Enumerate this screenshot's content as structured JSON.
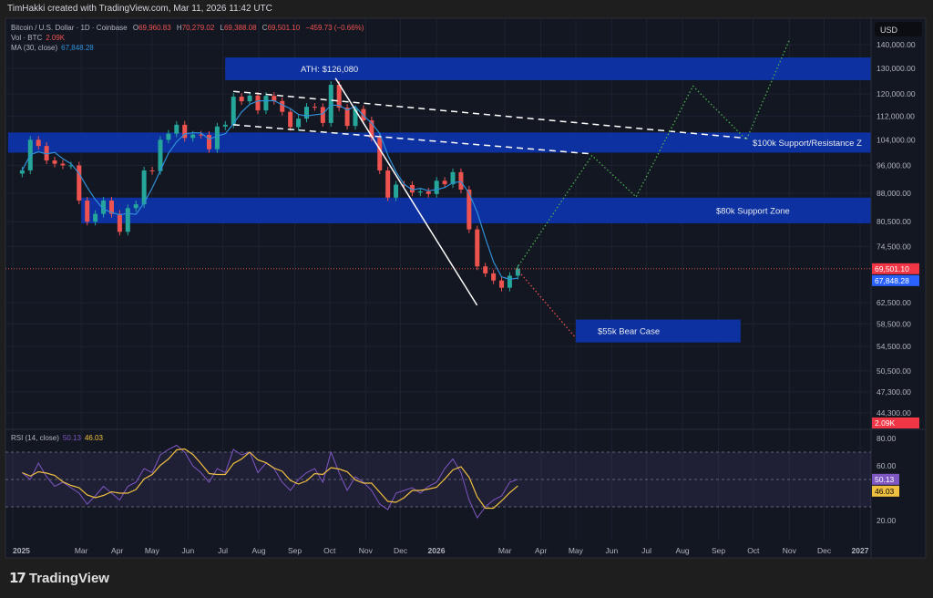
{
  "credit": "TimHakki created with TradingView.com, Mar 11, 2026 11:42 UTC",
  "brand": "TradingView",
  "legend": {
    "symbol": "Bitcoin / U.S. Dollar · 1D · Coinbase",
    "o_label": "O",
    "o": "69,960.83",
    "h_label": "H",
    "h": "70,279.02",
    "l_label": "L",
    "l": "69,388.08",
    "c_label": "C",
    "c": "69,501.10",
    "change": "−459.73 (−0.66%)",
    "vol_label": "Vol · BTC",
    "vol": "2.09K",
    "ma_label": "MA (30, close)",
    "ma": "67,848.28",
    "rsi_label": "RSI (14, close)",
    "rsi": "50.13",
    "rsi_ma": "46.03"
  },
  "currency": "USD",
  "colors": {
    "up": "#26a69a",
    "down": "#ef5350",
    "ma": "#2f8fd8",
    "zone": "#0d33a8",
    "rsi": "#7e57c2",
    "rsi_ma": "#f0c040",
    "bull_path": "#4caf50",
    "bear_path": "#ef5350"
  },
  "chart_data": {
    "type": "candlestick",
    "scale": "log",
    "ylim": [
      44300,
      140000
    ],
    "y_ticks": [
      "140,000.00",
      "130,000.00",
      "120,000.00",
      "112,000.00",
      "104,000.00",
      "96,000.00",
      "88,000.00",
      "80,500.00",
      "74,500.00",
      "62,500.00",
      "58,500.00",
      "54,500.00",
      "50,500.00",
      "47,300.00",
      "44,300.00"
    ],
    "x_ticks": [
      {
        "date": "2025-01-01",
        "label": "2025",
        "bold": true
      },
      {
        "date": "2025-03-01",
        "label": "Mar"
      },
      {
        "date": "2025-04-01",
        "label": "Apr"
      },
      {
        "date": "2025-05-01",
        "label": "May"
      },
      {
        "date": "2025-06-01",
        "label": "Jun"
      },
      {
        "date": "2025-07-01",
        "label": "Jul"
      },
      {
        "date": "2025-08-01",
        "label": "Aug"
      },
      {
        "date": "2025-09-01",
        "label": "Sep"
      },
      {
        "date": "2025-10-01",
        "label": "Oct"
      },
      {
        "date": "2025-11-01",
        "label": "Nov"
      },
      {
        "date": "2025-12-01",
        "label": "Dec"
      },
      {
        "date": "2026-01-01",
        "label": "2026",
        "bold": true
      },
      {
        "date": "2026-03-01",
        "label": "Mar"
      },
      {
        "date": "2026-04-01",
        "label": "Apr"
      },
      {
        "date": "2026-05-01",
        "label": "May"
      },
      {
        "date": "2026-06-01",
        "label": "Jun"
      },
      {
        "date": "2026-07-01",
        "label": "Jul"
      },
      {
        "date": "2026-08-01",
        "label": "Aug"
      },
      {
        "date": "2026-09-01",
        "label": "Sep"
      },
      {
        "date": "2026-10-01",
        "label": "Oct"
      },
      {
        "date": "2026-11-01",
        "label": "Nov"
      },
      {
        "date": "2026-12-01",
        "label": "Dec"
      },
      {
        "date": "2027-01-01",
        "label": "2027",
        "bold": true
      }
    ],
    "weeks": [
      "2025-01-06",
      "2025-01-13",
      "2025-01-20",
      "2025-01-27",
      "2025-02-03",
      "2025-02-10",
      "2025-02-17",
      "2025-02-24",
      "2025-03-03",
      "2025-03-10",
      "2025-03-17",
      "2025-03-24",
      "2025-03-31",
      "2025-04-07",
      "2025-04-14",
      "2025-04-21",
      "2025-04-28",
      "2025-05-05",
      "2025-05-12",
      "2025-05-19",
      "2025-05-26",
      "2025-06-02",
      "2025-06-09",
      "2025-06-16",
      "2025-06-23",
      "2025-06-30",
      "2025-07-07",
      "2025-07-14",
      "2025-07-21",
      "2025-07-28",
      "2025-08-04",
      "2025-08-11",
      "2025-08-18",
      "2025-08-25",
      "2025-09-01",
      "2025-09-08",
      "2025-09-15",
      "2025-09-22",
      "2025-09-29",
      "2025-10-06",
      "2025-10-13",
      "2025-10-20",
      "2025-10-27",
      "2025-11-03",
      "2025-11-10",
      "2025-11-17",
      "2025-11-24",
      "2025-12-01",
      "2025-12-08",
      "2025-12-15",
      "2025-12-22",
      "2025-12-29",
      "2026-01-05",
      "2026-01-12",
      "2026-01-19",
      "2026-01-26",
      "2026-02-02",
      "2026-02-09",
      "2026-02-16",
      "2026-02-23",
      "2026-03-02",
      "2026-03-09"
    ],
    "close": [
      94500,
      104000,
      102000,
      97500,
      96500,
      96000,
      96000,
      86000,
      80500,
      82500,
      86000,
      82500,
      78000,
      84000,
      85000,
      94500,
      94300,
      104000,
      106000,
      109000,
      104600,
      105700,
      105600,
      101000,
      108400,
      109000,
      119000,
      117300,
      119400,
      114000,
      119300,
      117400,
      113500,
      108200,
      111100,
      115300,
      115200,
      109600,
      123500,
      115000,
      108600,
      114500,
      110500,
      104700,
      94500,
      86800,
      90400,
      90300,
      88200,
      88500,
      87800,
      91500,
      90500,
      94000,
      89000,
      78600,
      70000,
      68500,
      67000,
      65500,
      68000,
      69501.1
    ],
    "rsi": [
      55,
      50,
      62,
      52,
      45,
      48,
      44,
      40,
      32,
      38,
      45,
      40,
      35,
      45,
      48,
      58,
      55,
      68,
      72,
      75,
      70,
      60,
      55,
      48,
      58,
      55,
      72,
      68,
      70,
      55,
      62,
      58,
      48,
      42,
      50,
      55,
      58,
      48,
      70,
      55,
      42,
      52,
      48,
      42,
      32,
      28,
      40,
      42,
      44,
      40,
      45,
      48,
      58,
      65,
      55,
      35,
      22,
      30,
      35,
      38,
      48,
      50.13
    ],
    "rsi_ticks": [
      "80.00",
      "60.00",
      "20.00"
    ],
    "rsi_bands": [
      70,
      50,
      30
    ],
    "last_price": 69501.1,
    "last_price_label": "69,501.10",
    "ma_value": 67848.28,
    "ma_value_label": "67,848.28",
    "volume_label": "2.09K",
    "rsi_label": "50.13",
    "rsi_ma_label": "46.03",
    "zones": [
      {
        "label": "ATH: $126,080",
        "from": "2025-07-03",
        "to": "2027-01-10",
        "low": 125300,
        "high": 134500,
        "label_pos": "left"
      },
      {
        "label": "$100k Support/Resistance Z",
        "from": "2024-12-28",
        "to": "2027-01-10",
        "low": 99900,
        "high": 106400,
        "label_pos": "right"
      },
      {
        "label": "$80k Support Zone",
        "from": "2025-03-01",
        "to": "2027-01-10",
        "low": 80100,
        "high": 86800,
        "label_pos": "right"
      },
      {
        "label": "$55k Bear Case",
        "from": "2026-05-01",
        "to": "2026-09-20",
        "low": 55200,
        "high": 59300,
        "label_pos": "left"
      }
    ],
    "trendlines": [
      {
        "style": "solid",
        "points": [
          [
            "2025-10-06",
            126080
          ],
          [
            "2026-02-05",
            62000
          ]
        ]
      },
      {
        "style": "dashed",
        "points": [
          [
            "2025-07-10",
            121000
          ],
          [
            "2026-09-25",
            104500
          ]
        ]
      },
      {
        "style": "dashed",
        "points": [
          [
            "2025-07-10",
            109000
          ],
          [
            "2026-05-15",
            99500
          ]
        ]
      }
    ],
    "projections": [
      {
        "scenario": "bull",
        "points": [
          [
            "2026-03-11",
            69501
          ],
          [
            "2026-05-15",
            99000
          ],
          [
            "2026-06-22",
            87000
          ],
          [
            "2026-08-10",
            123000
          ],
          [
            "2026-09-25",
            104000
          ],
          [
            "2026-11-01",
            142000
          ]
        ]
      },
      {
        "scenario": "bear",
        "points": [
          [
            "2026-03-11",
            69501
          ],
          [
            "2026-05-01",
            56000
          ]
        ]
      }
    ]
  }
}
